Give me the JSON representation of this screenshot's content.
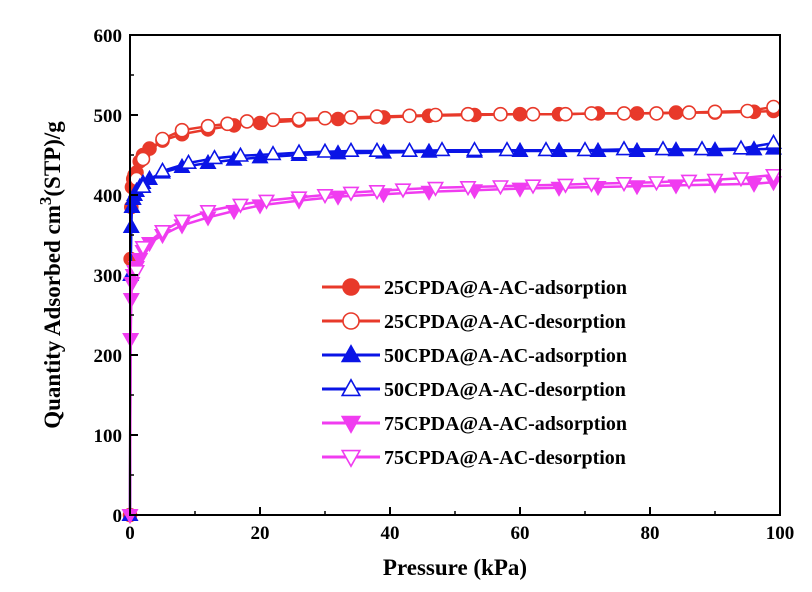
{
  "chart_data": {
    "type": "line",
    "title": "",
    "xlabel": "Pressure (kPa)",
    "ylabel_parts": [
      "Quantity Adsorbed cm",
      "3",
      "(STP)/g"
    ],
    "xlim": [
      0,
      100
    ],
    "ylim": [
      0,
      600
    ],
    "xticks": [
      0,
      20,
      40,
      60,
      80,
      100
    ],
    "yticks": [
      0,
      100,
      200,
      300,
      400,
      500,
      600
    ],
    "grid": false,
    "legend_position": "center-right",
    "series": [
      {
        "name": "25CPDA@A-AC-adsorption",
        "color": "#e8392a",
        "marker": "circle-filled",
        "x": [
          0.0,
          0.1,
          0.2,
          0.3,
          0.5,
          0.7,
          1.0,
          1.5,
          2.0,
          3.0,
          5.0,
          8.0,
          12.0,
          16.0,
          20.0,
          26.0,
          32.0,
          39.0,
          46.0,
          53.0,
          60.0,
          66.0,
          72.0,
          78.0,
          84.0,
          90.0,
          96.0,
          99.0
        ],
        "y": [
          0,
          320,
          385,
          410,
          420,
          425,
          428,
          442,
          450,
          458,
          468,
          476,
          482,
          487,
          490,
          493,
          495,
          497,
          499,
          500,
          501,
          501,
          502,
          502,
          503,
          503,
          504,
          505
        ]
      },
      {
        "name": "25CPDA@A-AC-desorption",
        "color": "#e8392a",
        "marker": "circle-open",
        "x": [
          99.0,
          95.0,
          90.0,
          86.0,
          81.0,
          76.0,
          71.0,
          67.0,
          62.0,
          57.0,
          52.0,
          47.0,
          43.0,
          38.0,
          34.0,
          30.0,
          26.0,
          22.0,
          18.0,
          15.0,
          12.0,
          8.0,
          5.0,
          2.0,
          1.0
        ],
        "y": [
          510,
          505,
          504,
          503,
          502,
          502,
          502,
          501,
          501,
          501,
          501,
          500,
          499,
          498,
          497,
          496,
          495,
          494,
          492,
          489,
          486,
          481,
          470,
          445,
          420
        ]
      },
      {
        "name": "50CPDA@A-AC-adsorption",
        "color": "#0a14e6",
        "marker": "triangle-up-filled",
        "x": [
          0.0,
          0.1,
          0.2,
          0.3,
          0.5,
          0.7,
          1.0,
          1.5,
          2.0,
          3.0,
          5.0,
          8.0,
          12.0,
          16.0,
          20.0,
          26.0,
          32.0,
          39.0,
          46.0,
          53.0,
          60.0,
          66.0,
          72.0,
          78.0,
          84.0,
          90.0,
          96.0,
          99.0
        ],
        "y": [
          0,
          300,
          360,
          385,
          395,
          400,
          405,
          410,
          415,
          420,
          428,
          435,
          440,
          444,
          447,
          450,
          452,
          453,
          454,
          454,
          455,
          455,
          455,
          455,
          456,
          456,
          457,
          458
        ]
      },
      {
        "name": "50CPDA@A-AC-desorption",
        "color": "#0a14e6",
        "marker": "triangle-up-open",
        "x": [
          99.0,
          94.0,
          88.0,
          82.0,
          76.0,
          70.0,
          64.0,
          58.0,
          53.0,
          48.0,
          43.0,
          38.0,
          34.0,
          30.0,
          26.0,
          22.0,
          17.0,
          13.0,
          9.0,
          5.0,
          2.0
        ],
        "y": [
          465,
          458,
          457,
          457,
          457,
          456,
          456,
          456,
          456,
          456,
          455,
          455,
          455,
          454,
          453,
          451,
          449,
          446,
          440,
          430,
          410
        ]
      },
      {
        "name": "75CPDA@A-AC-adsorption",
        "color": "#f03cf0",
        "marker": "triangle-down-filled",
        "x": [
          0.0,
          0.1,
          0.2,
          0.3,
          0.5,
          0.7,
          1.0,
          1.5,
          2.0,
          3.0,
          5.0,
          8.0,
          12.0,
          16.0,
          20.0,
          26.0,
          32.0,
          39.0,
          46.0,
          53.0,
          60.0,
          66.0,
          72.0,
          78.0,
          84.0,
          90.0,
          96.0,
          99.0
        ],
        "y": [
          0,
          220,
          270,
          290,
          300,
          305,
          310,
          320,
          330,
          340,
          350,
          362,
          372,
          380,
          387,
          393,
          398,
          401,
          404,
          406,
          408,
          409,
          410,
          411,
          412,
          413,
          414,
          416
        ]
      },
      {
        "name": "75CPDA@A-AC-desorption",
        "color": "#f03cf0",
        "marker": "triangle-down-open",
        "x": [
          99.0,
          94.0,
          90.0,
          86.0,
          81.0,
          76.0,
          71.0,
          67.0,
          62.0,
          57.0,
          52.0,
          47.0,
          42.0,
          38.0,
          34.0,
          30.0,
          26.0,
          21.0,
          17.0,
          12.0,
          8.0,
          5.0,
          2.0,
          1.0
        ],
        "y": [
          425,
          421,
          419,
          418,
          416,
          415,
          414,
          413,
          412,
          411,
          410,
          409,
          407,
          405,
          403,
          400,
          397,
          393,
          388,
          380,
          368,
          355,
          335,
          305
        ]
      }
    ]
  }
}
